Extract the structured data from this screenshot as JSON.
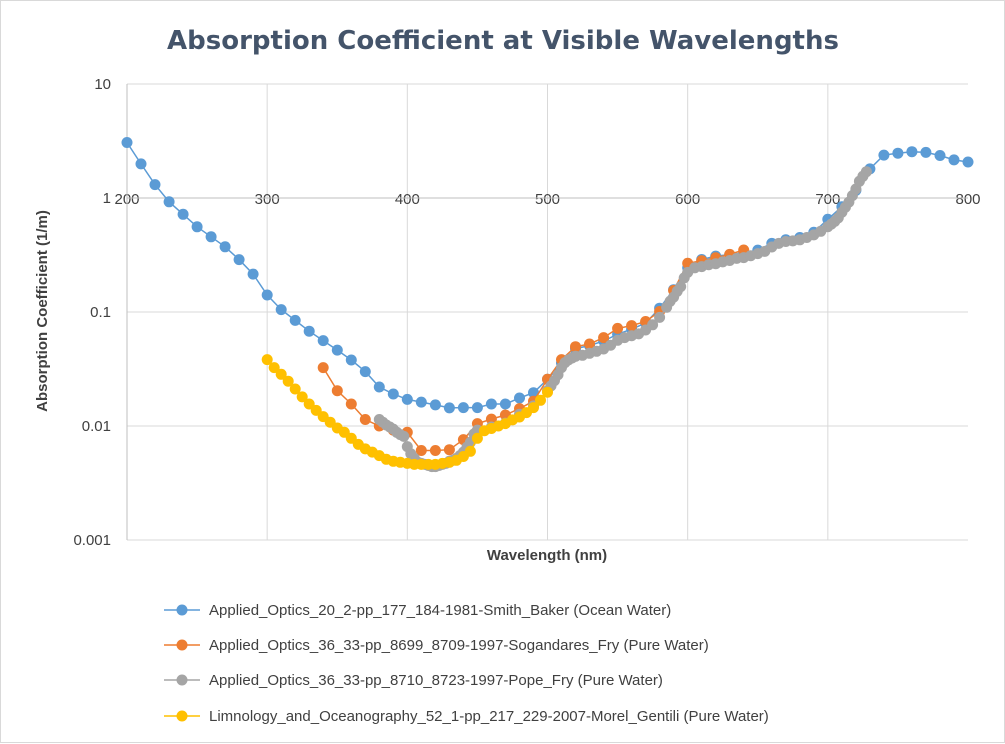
{
  "chart_data": {
    "type": "scatter",
    "title": "Absorption Coefficient at Visible Wavelengths",
    "xlabel": "Wavelength (nm)",
    "ylabel": "Absorption Coefficient (1/m)",
    "xlim": [
      200,
      800
    ],
    "ylim": [
      0.001,
      10
    ],
    "yscale": "log",
    "grid": true,
    "legend_position": "bottom",
    "x_ticks": [
      "200",
      "300",
      "400",
      "500",
      "600",
      "700",
      "800"
    ],
    "y_ticks": [
      "10",
      "1",
      "0.1",
      "0.01",
      "0.001"
    ],
    "series": [
      {
        "name": "Applied_Optics_20_2-pp_177_184-1981-Smith_Baker (Ocean Water)",
        "color": "#5b9bd5",
        "x": [
          200,
          210,
          220,
          230,
          240,
          250,
          260,
          270,
          280,
          290,
          300,
          310,
          320,
          330,
          340,
          350,
          360,
          370,
          380,
          390,
          400,
          410,
          420,
          430,
          440,
          450,
          460,
          470,
          480,
          490,
          500,
          510,
          520,
          530,
          540,
          550,
          560,
          570,
          580,
          590,
          600,
          610,
          620,
          630,
          640,
          650,
          660,
          670,
          680,
          690,
          700,
          710,
          720,
          730,
          740,
          750,
          760,
          770,
          780,
          790,
          800
        ],
        "y": [
          3.07,
          1.99,
          1.31,
          0.927,
          0.72,
          0.559,
          0.457,
          0.373,
          0.288,
          0.215,
          0.141,
          0.105,
          0.0844,
          0.0678,
          0.0561,
          0.0463,
          0.0379,
          0.03,
          0.022,
          0.0191,
          0.0171,
          0.0162,
          0.0153,
          0.0144,
          0.0145,
          0.0145,
          0.0156,
          0.0156,
          0.0176,
          0.0196,
          0.0257,
          0.0357,
          0.0477,
          0.0507,
          0.0558,
          0.0638,
          0.0708,
          0.0799,
          0.108,
          0.157,
          0.244,
          0.289,
          0.309,
          0.319,
          0.329,
          0.349,
          0.4,
          0.43,
          0.45,
          0.5,
          0.65,
          0.839,
          1.169,
          1.799,
          2.38,
          2.47,
          2.55,
          2.51,
          2.36,
          2.16,
          2.07
        ]
      },
      {
        "name": "Applied_Optics_36_33-pp_8699_8709-1997-Sogandares_Fry (Pure Water)",
        "color": "#ed7d31",
        "x": [
          340,
          350,
          360,
          370,
          380,
          390,
          400,
          410,
          420,
          430,
          440,
          450,
          460,
          470,
          480,
          490,
          500,
          510,
          520,
          530,
          540,
          550,
          560,
          570,
          580,
          590,
          600,
          610,
          620,
          630,
          640
        ],
        "y": [
          0.0325,
          0.0204,
          0.0156,
          0.0114,
          0.01,
          0.0092,
          0.0088,
          0.0061,
          0.0061,
          0.0062,
          0.0076,
          0.0105,
          0.0115,
          0.0125,
          0.0142,
          0.0165,
          0.0257,
          0.0382,
          0.0496,
          0.0524,
          0.0596,
          0.0718,
          0.076,
          0.0826,
          0.1011,
          0.1544,
          0.2675,
          0.281,
          0.299,
          0.32,
          0.35
        ]
      },
      {
        "name": "Applied_Optics_36_33-pp_8710_8723-1997-Pope_Fry (Pure Water)",
        "color": "#a5a5a5",
        "x": [
          380,
          382.5,
          385,
          387.5,
          390,
          392.5,
          395,
          397.5,
          400,
          402.5,
          405,
          407.5,
          410,
          412.5,
          415,
          417.5,
          420,
          422.5,
          425,
          427.5,
          430,
          432.5,
          435,
          437.5,
          440,
          442.5,
          445,
          447.5,
          450,
          460,
          470,
          480,
          490,
          500,
          502.5,
          505,
          507.5,
          510,
          512.5,
          515,
          517.5,
          520,
          525,
          530,
          535,
          540,
          545,
          550,
          555,
          560,
          565,
          570,
          575,
          580,
          585,
          587.5,
          590,
          592.5,
          595,
          597.5,
          600,
          605,
          610,
          615,
          620,
          625,
          630,
          635,
          640,
          645,
          650,
          655,
          660,
          665,
          670,
          675,
          680,
          685,
          690,
          695,
          700,
          702.5,
          705,
          707.5,
          710,
          712.5,
          715,
          717.5,
          720,
          722.5,
          725,
          727.5
        ],
        "y": [
          0.0114,
          0.0108,
          0.0102,
          0.0098,
          0.0094,
          0.0088,
          0.0084,
          0.0081,
          0.0066,
          0.0057,
          0.0052,
          0.0048,
          0.0047,
          0.0046,
          0.0045,
          0.0044,
          0.0044,
          0.0045,
          0.0046,
          0.0047,
          0.0049,
          0.005,
          0.0052,
          0.0055,
          0.0059,
          0.0065,
          0.0072,
          0.0085,
          0.0092,
          0.0098,
          0.0106,
          0.0127,
          0.015,
          0.0204,
          0.0225,
          0.025,
          0.0282,
          0.0325,
          0.036,
          0.038,
          0.0395,
          0.0409,
          0.0417,
          0.0434,
          0.0452,
          0.0474,
          0.0511,
          0.0565,
          0.0596,
          0.0619,
          0.0642,
          0.0695,
          0.0772,
          0.0896,
          0.11,
          0.124,
          0.1351,
          0.1519,
          0.1672,
          0.199,
          0.2224,
          0.244,
          0.25,
          0.26,
          0.265,
          0.275,
          0.283,
          0.295,
          0.3,
          0.312,
          0.325,
          0.34,
          0.372,
          0.4,
          0.415,
          0.42,
          0.43,
          0.45,
          0.475,
          0.51,
          0.56,
          0.59,
          0.625,
          0.67,
          0.75,
          0.83,
          0.92,
          1.05,
          1.2,
          1.4,
          1.55,
          1.7
        ]
      },
      {
        "name": "Limnology_and_Oceanography_52_1-pp_217_229-2007-Morel_Gentili (Pure Water)",
        "color": "#ffc000",
        "x": [
          300,
          305,
          310,
          315,
          320,
          325,
          330,
          335,
          340,
          345,
          350,
          355,
          360,
          365,
          370,
          375,
          380,
          385,
          390,
          395,
          400,
          405,
          410,
          415,
          420,
          425,
          430,
          435,
          440,
          445,
          450,
          455,
          460,
          465,
          470,
          475,
          480,
          485,
          490,
          495,
          500
        ],
        "y": [
          0.0382,
          0.0325,
          0.0284,
          0.0247,
          0.0211,
          0.018,
          0.0156,
          0.0137,
          0.0121,
          0.0108,
          0.0096,
          0.0088,
          0.0078,
          0.0069,
          0.0063,
          0.0059,
          0.0055,
          0.0051,
          0.0049,
          0.0048,
          0.0047,
          0.0046,
          0.0046,
          0.0046,
          0.0046,
          0.0047,
          0.0048,
          0.005,
          0.0054,
          0.006,
          0.0078,
          0.0091,
          0.0095,
          0.01,
          0.0105,
          0.0113,
          0.012,
          0.0131,
          0.0145,
          0.0168,
          0.0198
        ]
      }
    ]
  }
}
